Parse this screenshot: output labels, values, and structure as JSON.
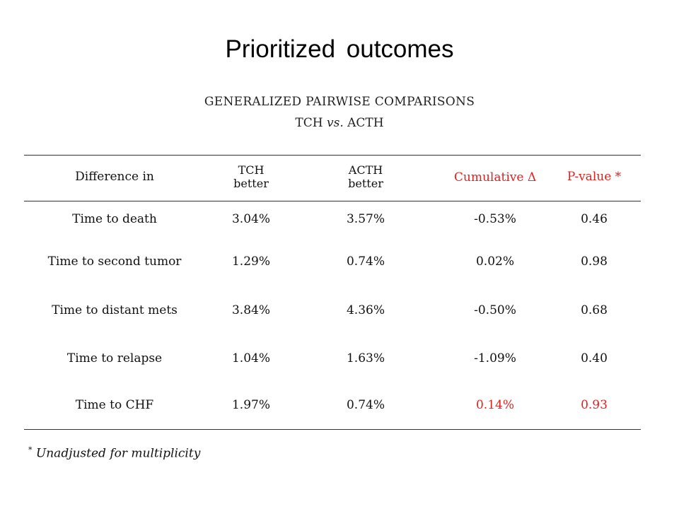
{
  "title": "Prioritized outcomes",
  "subtitle_line1": "GENERALIZED PAIRWISE COMPARISONS",
  "subtitle_line2_a": "TCH ",
  "subtitle_line2_vs": "vs.",
  "subtitle_line2_b": " ACTH",
  "header": {
    "col0": "Difference in",
    "col1_line1": "TCH",
    "col1_line2": "better",
    "col2_line1": "ACTH",
    "col2_line2": "better",
    "col3": "Cumulative Δ",
    "col4": "P-value *"
  },
  "rows": [
    {
      "outcome": "Time to death",
      "tch": "3.04%",
      "acth": "3.57%",
      "cumulative": "-0.53%",
      "p": "0.46"
    },
    {
      "outcome": "Time to second tumor",
      "tch": "1.29%",
      "acth": "0.74%",
      "cumulative": "0.02%",
      "p": "0.98"
    },
    {
      "outcome": "Time to distant mets",
      "tch": "3.84%",
      "acth": "4.36%",
      "cumulative": "-0.50%",
      "p": "0.68"
    },
    {
      "outcome": "Time to relapse",
      "tch": "1.04%",
      "acth": "1.63%",
      "cumulative": "-1.09%",
      "p": "0.40"
    },
    {
      "outcome": "Time to CHF",
      "tch": "1.97%",
      "acth": "0.74%",
      "cumulative": "0.14%",
      "p": "0.93"
    }
  ],
  "footnote_mark": "*",
  "footnote_text": " Unadjusted for multiplicity",
  "colors": {
    "highlight": "#e0201c",
    "text": "#111111",
    "rule": "#333333"
  }
}
